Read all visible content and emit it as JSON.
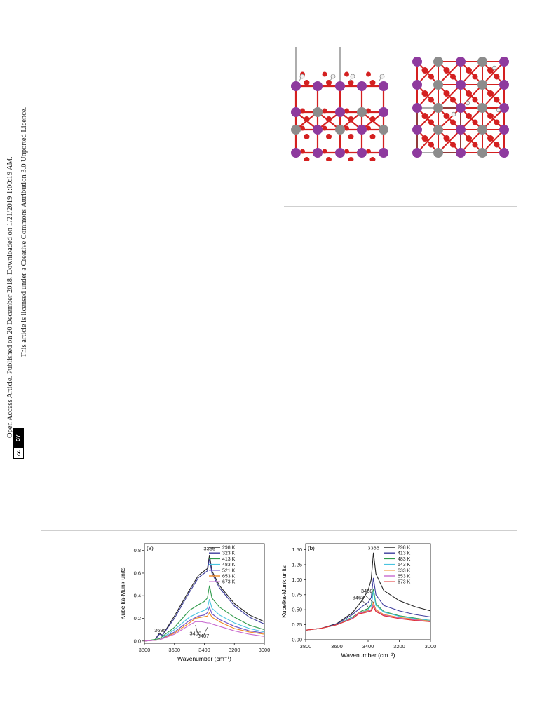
{
  "sidebar": {
    "line1": "Open Access Article. Published on 20 December 2018. Downloaded on 1/21/2019 1:00:19 AM.",
    "line2": "This article is licensed under a Creative Commons Attribution 3.0 Unported Licence.",
    "cc_label": "cc",
    "by_label": "BY"
  },
  "colors": {
    "o_atom": "#d42020",
    "metal_purple": "#8e3a9e",
    "metal_gray": "#8c8c8c",
    "h_atom": "#f2f2f2"
  },
  "chart_data": [
    {
      "type": "line",
      "panel_label": "(a)",
      "xlabel": "Wavenumber (cm⁻¹)",
      "ylabel": "Kubelka-Munk units",
      "xlim": [
        3800,
        3000
      ],
      "ylim": [
        -0.02,
        0.86
      ],
      "xticks": [
        3800,
        3600,
        3400,
        3200,
        3000
      ],
      "yticks": [
        0.0,
        0.2,
        0.4,
        0.6,
        0.8
      ],
      "ytick_labels": [
        "0.0",
        "0.2",
        "0.4",
        "0.6",
        "0.8"
      ],
      "legend_position": "top-right",
      "annotations": [
        {
          "text": "3366",
          "x": 3366,
          "y": 0.8
        },
        {
          "text": "3695",
          "x": 3695,
          "y": 0.08
        },
        {
          "text": "3460",
          "x": 3460,
          "y": 0.05
        },
        {
          "text": "3407",
          "x": 3407,
          "y": 0.03
        }
      ],
      "series": [
        {
          "name": "298 K",
          "color": "#222222",
          "values": [
            [
              3800,
              0.0
            ],
            [
              3730,
              0.01
            ],
            [
              3700,
              0.07
            ],
            [
              3680,
              0.05
            ],
            [
              3600,
              0.22
            ],
            [
              3500,
              0.45
            ],
            [
              3440,
              0.58
            ],
            [
              3400,
              0.62
            ],
            [
              3380,
              0.64
            ],
            [
              3366,
              0.76
            ],
            [
              3350,
              0.62
            ],
            [
              3300,
              0.49
            ],
            [
              3200,
              0.33
            ],
            [
              3100,
              0.23
            ],
            [
              3000,
              0.17
            ]
          ]
        },
        {
          "name": "323 K",
          "color": "#3f3f9e",
          "values": [
            [
              3800,
              0.0
            ],
            [
              3730,
              0.01
            ],
            [
              3700,
              0.06
            ],
            [
              3680,
              0.05
            ],
            [
              3600,
              0.2
            ],
            [
              3500,
              0.43
            ],
            [
              3440,
              0.56
            ],
            [
              3400,
              0.6
            ],
            [
              3380,
              0.62
            ],
            [
              3366,
              0.73
            ],
            [
              3350,
              0.6
            ],
            [
              3300,
              0.47
            ],
            [
              3200,
              0.31
            ],
            [
              3100,
              0.21
            ],
            [
              3000,
              0.15
            ]
          ]
        },
        {
          "name": "413 K",
          "color": "#2e9a4a",
          "values": [
            [
              3800,
              0.0
            ],
            [
              3700,
              0.02
            ],
            [
              3600,
              0.12
            ],
            [
              3500,
              0.27
            ],
            [
              3440,
              0.32
            ],
            [
              3400,
              0.35
            ],
            [
              3380,
              0.38
            ],
            [
              3366,
              0.49
            ],
            [
              3350,
              0.38
            ],
            [
              3300,
              0.3
            ],
            [
              3200,
              0.21
            ],
            [
              3100,
              0.14
            ],
            [
              3000,
              0.1
            ]
          ]
        },
        {
          "name": "483 K",
          "color": "#49c4e0",
          "values": [
            [
              3800,
              0.0
            ],
            [
              3700,
              0.01
            ],
            [
              3600,
              0.1
            ],
            [
              3500,
              0.21
            ],
            [
              3440,
              0.25
            ],
            [
              3400,
              0.27
            ],
            [
              3380,
              0.29
            ],
            [
              3366,
              0.37
            ],
            [
              3350,
              0.29
            ],
            [
              3300,
              0.23
            ],
            [
              3200,
              0.16
            ],
            [
              3100,
              0.11
            ],
            [
              3000,
              0.08
            ]
          ]
        },
        {
          "name": "521 K",
          "color": "#6a4ec4",
          "values": [
            [
              3800,
              0.0
            ],
            [
              3700,
              0.01
            ],
            [
              3600,
              0.08
            ],
            [
              3500,
              0.18
            ],
            [
              3440,
              0.22
            ],
            [
              3400,
              0.23
            ],
            [
              3380,
              0.25
            ],
            [
              3366,
              0.3
            ],
            [
              3350,
              0.24
            ],
            [
              3300,
              0.19
            ],
            [
              3200,
              0.13
            ],
            [
              3100,
              0.09
            ],
            [
              3000,
              0.07
            ]
          ]
        },
        {
          "name": "653 K",
          "color": "#f08a24",
          "values": [
            [
              3800,
              0.0
            ],
            [
              3700,
              0.01
            ],
            [
              3600,
              0.07
            ],
            [
              3500,
              0.16
            ],
            [
              3460,
              0.2
            ],
            [
              3420,
              0.21
            ],
            [
              3380,
              0.22
            ],
            [
              3366,
              0.25
            ],
            [
              3350,
              0.21
            ],
            [
              3300,
              0.17
            ],
            [
              3200,
              0.11
            ],
            [
              3100,
              0.08
            ],
            [
              3000,
              0.06
            ]
          ]
        },
        {
          "name": "673 K",
          "color": "#c86ad0",
          "values": [
            [
              3800,
              0.0
            ],
            [
              3700,
              0.01
            ],
            [
              3600,
              0.06
            ],
            [
              3500,
              0.14
            ],
            [
              3460,
              0.17
            ],
            [
              3420,
              0.17
            ],
            [
              3380,
              0.16
            ],
            [
              3366,
              0.16
            ],
            [
              3350,
              0.15
            ],
            [
              3300,
              0.13
            ],
            [
              3200,
              0.09
            ],
            [
              3100,
              0.06
            ],
            [
              3000,
              0.04
            ]
          ]
        }
      ]
    },
    {
      "type": "line",
      "panel_label": "(b)",
      "xlabel": "Wavenumber (cm⁻¹)",
      "ylabel": "Kubelka-Munk units",
      "xlim": [
        3800,
        3000
      ],
      "ylim": [
        0.0,
        1.6
      ],
      "xticks": [
        3800,
        3600,
        3400,
        3200,
        3000
      ],
      "yticks": [
        0.0,
        0.25,
        0.5,
        0.75,
        1.0,
        1.25,
        1.5
      ],
      "ytick_labels": [
        "0.00",
        "0.25",
        "0.50",
        "0.75",
        "1.00",
        "1.25",
        "1.50"
      ],
      "legend_position": "top-right",
      "annotations": [
        {
          "text": "3366",
          "x": 3366,
          "y": 1.5
        },
        {
          "text": "3408",
          "x": 3408,
          "y": 0.78
        },
        {
          "text": "3463",
          "x": 3463,
          "y": 0.67
        }
      ],
      "series": [
        {
          "name": "298 K",
          "color": "#222222",
          "values": [
            [
              3800,
              0.16
            ],
            [
              3700,
              0.19
            ],
            [
              3600,
              0.27
            ],
            [
              3500,
              0.45
            ],
            [
              3440,
              0.65
            ],
            [
              3400,
              0.82
            ],
            [
              3380,
              1.0
            ],
            [
              3366,
              1.45
            ],
            [
              3350,
              1.1
            ],
            [
              3300,
              0.82
            ],
            [
              3200,
              0.65
            ],
            [
              3100,
              0.55
            ],
            [
              3000,
              0.48
            ]
          ]
        },
        {
          "name": "413 K",
          "color": "#3f3f9e",
          "values": [
            [
              3800,
              0.16
            ],
            [
              3700,
              0.19
            ],
            [
              3600,
              0.26
            ],
            [
              3500,
              0.42
            ],
            [
              3440,
              0.55
            ],
            [
              3400,
              0.62
            ],
            [
              3380,
              0.7
            ],
            [
              3366,
              1.03
            ],
            [
              3350,
              0.75
            ],
            [
              3300,
              0.57
            ],
            [
              3200,
              0.48
            ],
            [
              3100,
              0.42
            ],
            [
              3000,
              0.38
            ]
          ]
        },
        {
          "name": "483 K",
          "color": "#2e9a4a",
          "values": [
            [
              3800,
              0.16
            ],
            [
              3700,
              0.19
            ],
            [
              3600,
              0.25
            ],
            [
              3500,
              0.38
            ],
            [
              3440,
              0.48
            ],
            [
              3400,
              0.52
            ],
            [
              3380,
              0.58
            ],
            [
              3366,
              0.85
            ],
            [
              3350,
              0.6
            ],
            [
              3300,
              0.47
            ],
            [
              3200,
              0.4
            ],
            [
              3100,
              0.36
            ],
            [
              3000,
              0.32
            ]
          ]
        },
        {
          "name": "543 K",
          "color": "#49c4e0",
          "values": [
            [
              3800,
              0.16
            ],
            [
              3700,
              0.19
            ],
            [
              3600,
              0.25
            ],
            [
              3500,
              0.37
            ],
            [
              3440,
              0.46
            ],
            [
              3400,
              0.5
            ],
            [
              3380,
              0.56
            ],
            [
              3366,
              0.8
            ],
            [
              3350,
              0.57
            ],
            [
              3300,
              0.46
            ],
            [
              3200,
              0.39
            ],
            [
              3100,
              0.35
            ],
            [
              3000,
              0.32
            ]
          ]
        },
        {
          "name": "633 K",
          "color": "#f08a24",
          "values": [
            [
              3800,
              0.16
            ],
            [
              3700,
              0.19
            ],
            [
              3600,
              0.25
            ],
            [
              3500,
              0.36
            ],
            [
              3460,
              0.45
            ],
            [
              3420,
              0.47
            ],
            [
              3380,
              0.5
            ],
            [
              3366,
              0.62
            ],
            [
              3350,
              0.5
            ],
            [
              3300,
              0.42
            ],
            [
              3200,
              0.37
            ],
            [
              3100,
              0.34
            ],
            [
              3000,
              0.31
            ]
          ]
        },
        {
          "name": "653 K",
          "color": "#c86ad0",
          "values": [
            [
              3800,
              0.16
            ],
            [
              3700,
              0.19
            ],
            [
              3600,
              0.25
            ],
            [
              3500,
              0.36
            ],
            [
              3460,
              0.44
            ],
            [
              3420,
              0.46
            ],
            [
              3380,
              0.49
            ],
            [
              3366,
              0.58
            ],
            [
              3350,
              0.48
            ],
            [
              3300,
              0.41
            ],
            [
              3200,
              0.36
            ],
            [
              3100,
              0.33
            ],
            [
              3000,
              0.3
            ]
          ]
        },
        {
          "name": "673 K",
          "color": "#e23030",
          "values": [
            [
              3800,
              0.16
            ],
            [
              3700,
              0.19
            ],
            [
              3600,
              0.25
            ],
            [
              3500,
              0.35
            ],
            [
              3460,
              0.43
            ],
            [
              3420,
              0.45
            ],
            [
              3380,
              0.48
            ],
            [
              3366,
              0.55
            ],
            [
              3350,
              0.47
            ],
            [
              3300,
              0.4
            ],
            [
              3200,
              0.35
            ],
            [
              3100,
              0.32
            ],
            [
              3000,
              0.3
            ]
          ]
        }
      ]
    }
  ]
}
